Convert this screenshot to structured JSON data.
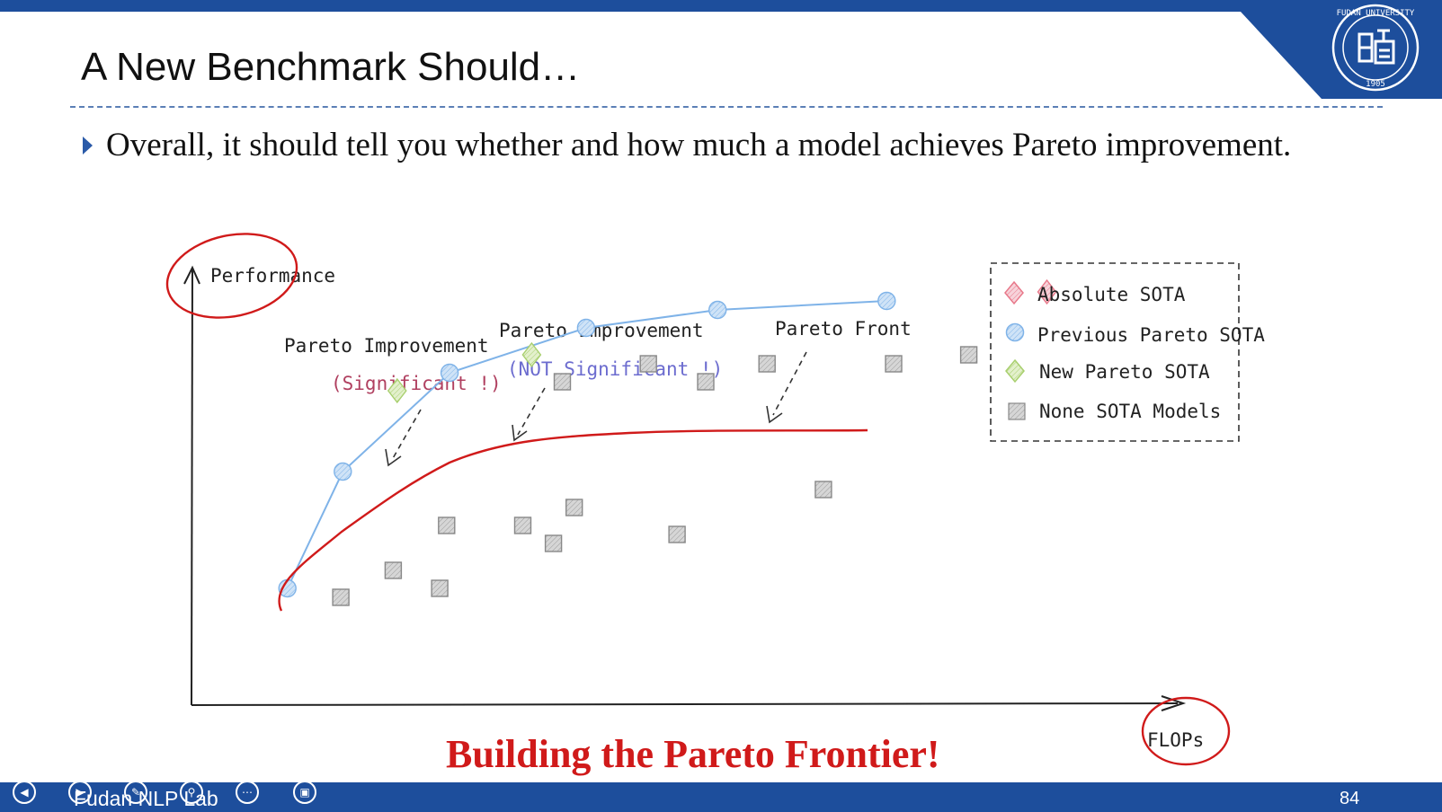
{
  "slide": {
    "title": "A New Benchmark Should…",
    "bullet": "Overall, it should tell you whether and how much a model achieves Pareto improvement.",
    "footer_title": "Building the Pareto Frontier!",
    "lab": "Fudan NLP Lab",
    "page_number": "84"
  },
  "colors": {
    "band": "#1d4e9c",
    "accent_red": "#d01a1a",
    "sota_pink": "#e8788a",
    "prev_blue": "#7fb3e8",
    "new_green": "#a8cf6e",
    "none_gray": "#b0b0b0"
  },
  "chart_data": {
    "type": "scatter",
    "xlabel": "FLOPs",
    "ylabel": "Performance",
    "legend": {
      "placement": "top-right",
      "entries": [
        "Absolute SOTA",
        "Previous Pareto SOTA",
        "New Pareto SOTA",
        "None SOTA Models"
      ]
    },
    "annotations": [
      {
        "text": "Pareto Improvement",
        "sub": "(Significant !)"
      },
      {
        "text": "Pareto Improvement",
        "sub": "(NOT Significant !)"
      },
      {
        "text": "Pareto Front",
        "sub": ""
      }
    ],
    "series": [
      {
        "name": "Previous Pareto SOTA",
        "marker": "circle",
        "points": [
          [
            9.7,
            1.3
          ],
          [
            15.3,
            2.6
          ],
          [
            26.1,
            3.7
          ],
          [
            39.9,
            4.2
          ],
          [
            53.2,
            4.4
          ],
          [
            70.3,
            4.5
          ]
        ]
      },
      {
        "name": "New Pareto SOTA",
        "marker": "diamond",
        "points": [
          [
            20.8,
            3.5
          ],
          [
            34.4,
            3.9
          ]
        ]
      },
      {
        "name": "Absolute SOTA",
        "marker": "diamond",
        "points": [
          [
            86.5,
            4.6
          ]
        ]
      },
      {
        "name": "None SOTA Models",
        "marker": "square",
        "points": [
          [
            15.1,
            1.2
          ],
          [
            20.4,
            1.5
          ],
          [
            25.1,
            1.3
          ],
          [
            25.8,
            2.0
          ],
          [
            33.5,
            2.0
          ],
          [
            36.6,
            1.8
          ],
          [
            37.5,
            3.6
          ],
          [
            38.7,
            2.2
          ],
          [
            46.2,
            3.8
          ],
          [
            49.1,
            1.9
          ],
          [
            52.0,
            3.6
          ],
          [
            58.2,
            3.8
          ],
          [
            63.9,
            2.4
          ],
          [
            71.0,
            3.8
          ],
          [
            78.6,
            3.9
          ]
        ]
      }
    ]
  }
}
